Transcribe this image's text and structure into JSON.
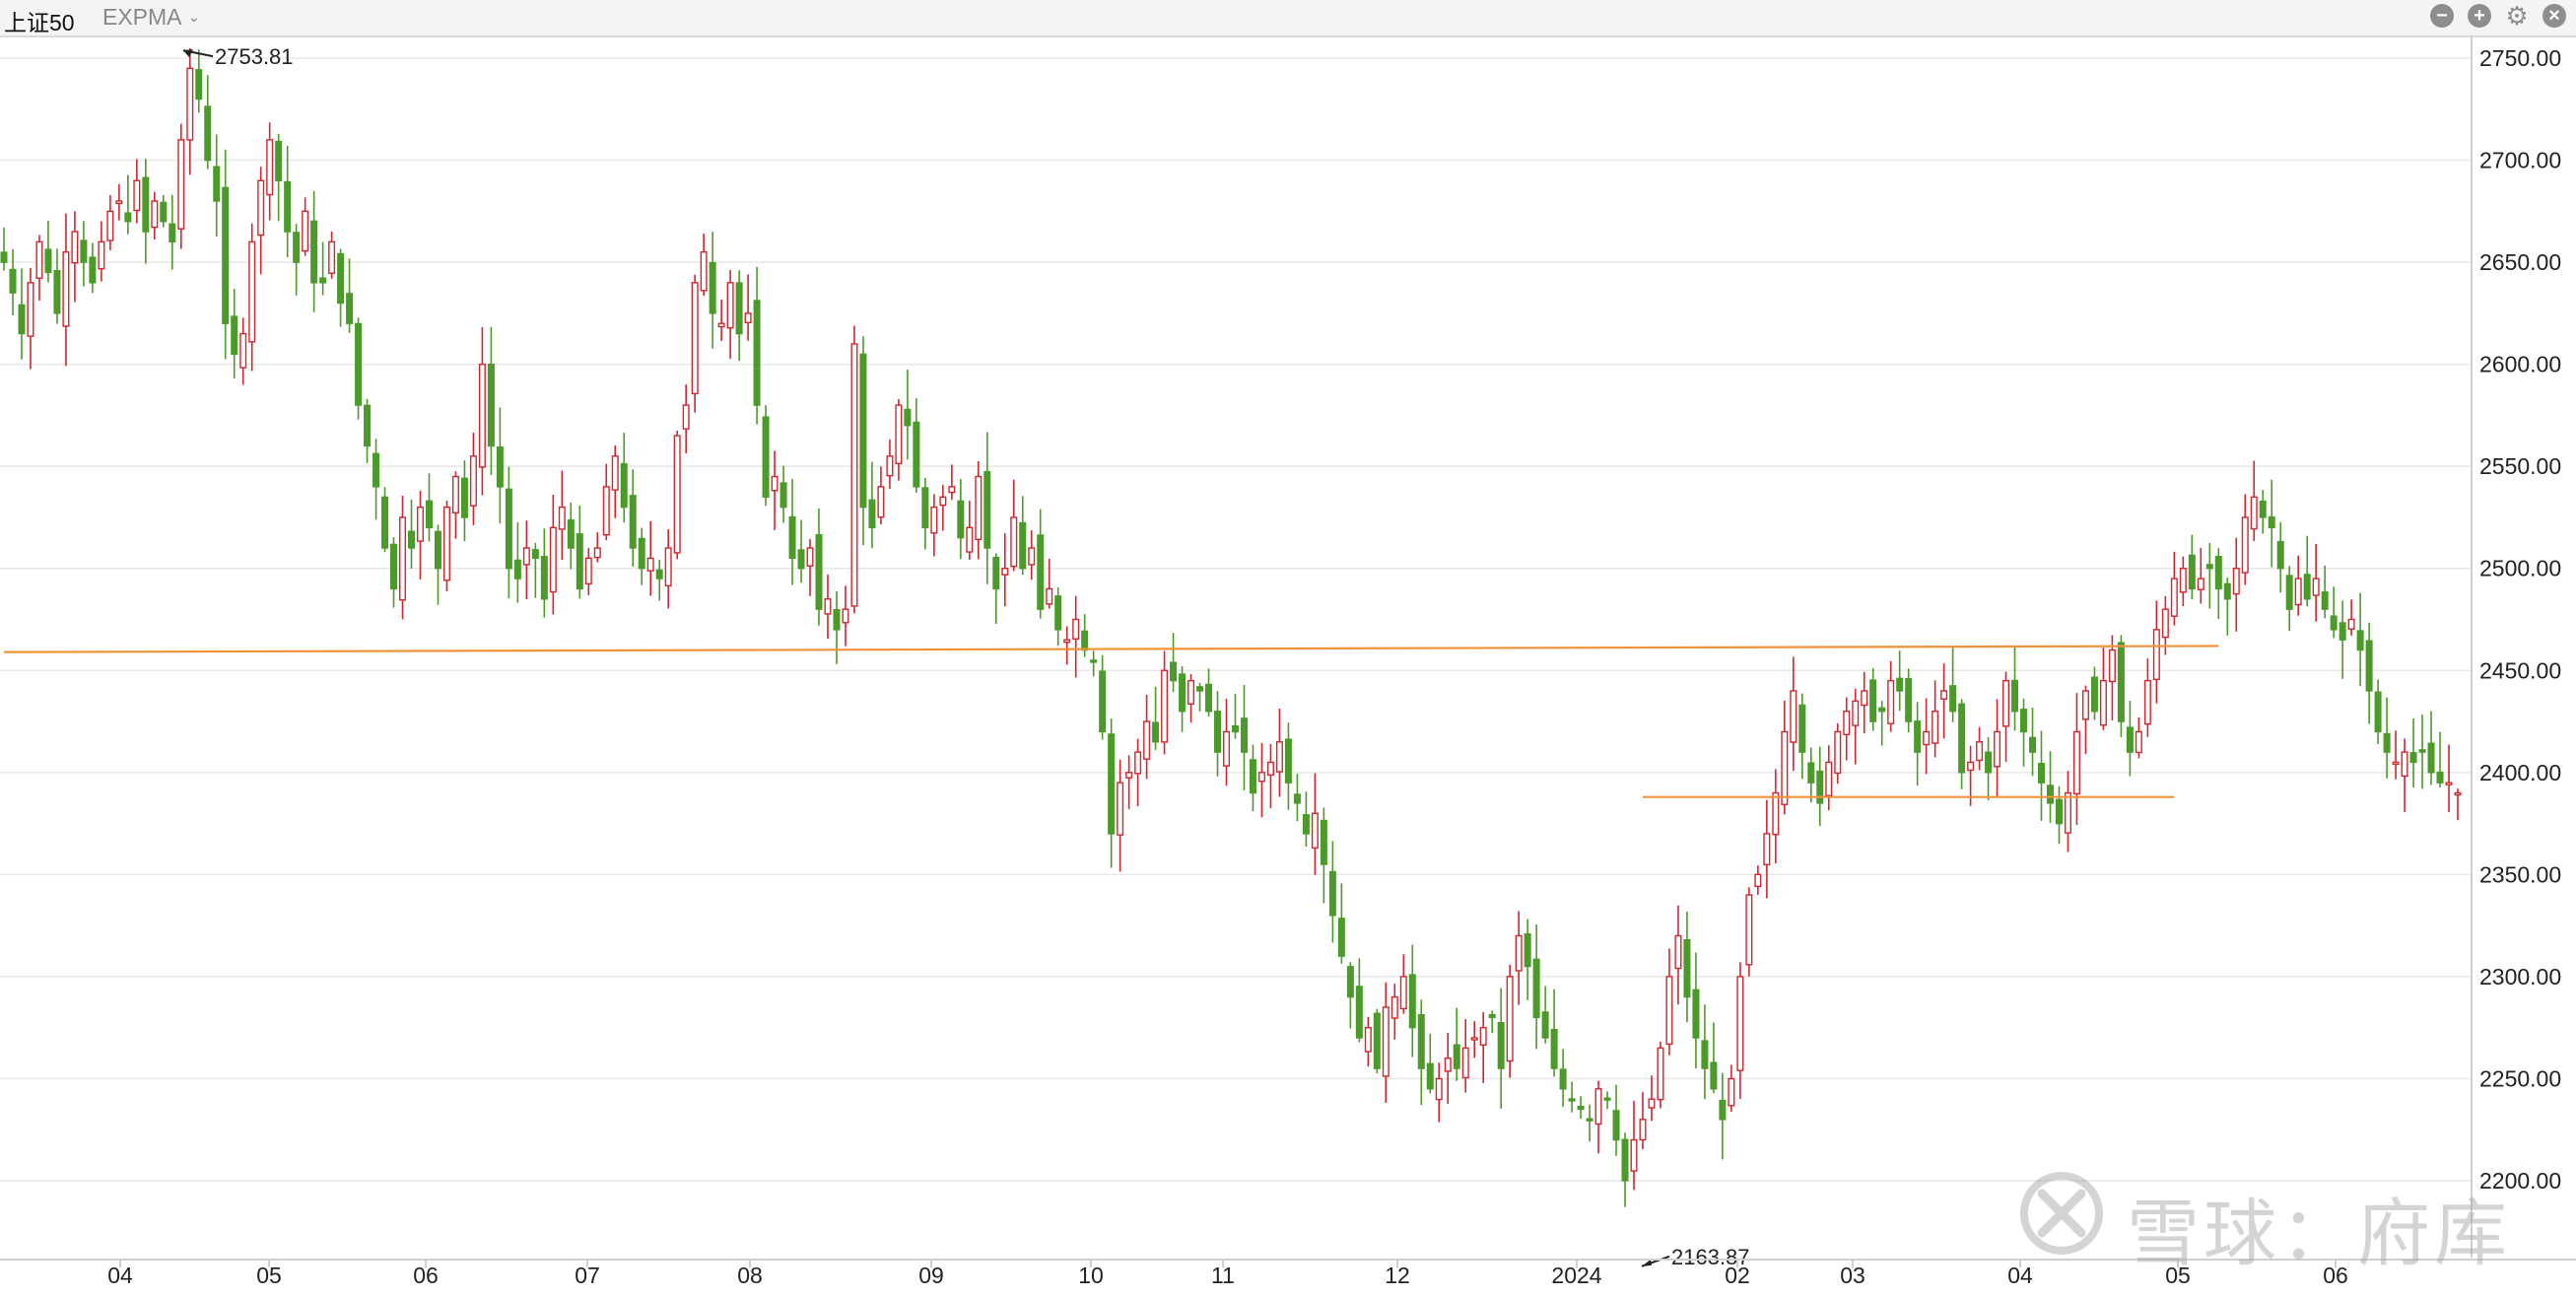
{
  "toolbar": {
    "title": "上证50",
    "indicator": "EXPMA",
    "buttons": [
      "minus-icon",
      "plus-icon",
      "gear-icon",
      "close-icon"
    ]
  },
  "watermark": {
    "text": "雪球：府库"
  },
  "colors": {
    "up": "#d0262f",
    "down": "#4b9a2a",
    "line": "#f0923a",
    "grid": "#e8e8e8"
  },
  "chart_data": {
    "type": "candlestick",
    "title": "",
    "ylim": [
      2160,
      2765
    ],
    "y_ticks": [
      "2750.00",
      "2700.00",
      "2650.00",
      "2600.00",
      "2550.00",
      "2500.00",
      "2450.00",
      "2400.00",
      "2350.00",
      "2300.00",
      "2250.00",
      "2200.00"
    ],
    "x_labels": [
      "04",
      "05",
      "06",
      "07",
      "08",
      "09",
      "10",
      "11",
      "12",
      "2024",
      "02",
      "03",
      "04",
      "05",
      "06"
    ],
    "annotations": [
      {
        "text": "2753.81",
        "value": 2753.81,
        "type": "high"
      },
      {
        "text": "2163.87",
        "value": 2163.87,
        "type": "low"
      }
    ],
    "horizontal_lines": [
      {
        "from_index": 0,
        "to_index": 250,
        "y_start": 2459,
        "y_end": 2462
      },
      {
        "from_index": 185,
        "to_index": 245,
        "y_start": 2388,
        "y_end": 2388
      }
    ],
    "series_close": [
      2650,
      2635,
      2615,
      2640,
      2660,
      2645,
      2625,
      2655,
      2665,
      2650,
      2640,
      2660,
      2675,
      2680,
      2670,
      2690,
      2665,
      2680,
      2670,
      2660,
      2710,
      2745,
      2730,
      2700,
      2680,
      2620,
      2605,
      2615,
      2660,
      2690,
      2710,
      2690,
      2665,
      2650,
      2675,
      2640,
      2640,
      2660,
      2630,
      2620,
      2580,
      2560,
      2540,
      2510,
      2490,
      2525,
      2510,
      2530,
      2520,
      2500,
      2530,
      2545,
      2525,
      2555,
      2600,
      2560,
      2540,
      2500,
      2495,
      2510,
      2505,
      2485,
      2520,
      2530,
      2510,
      2490,
      2505,
      2510,
      2540,
      2555,
      2530,
      2510,
      2500,
      2505,
      2495,
      2510,
      2565,
      2580,
      2640,
      2655,
      2625,
      2620,
      2640,
      2615,
      2625,
      2580,
      2535,
      2545,
      2530,
      2505,
      2500,
      2510,
      2480,
      2485,
      2470,
      2480,
      2610,
      2530,
      2520,
      2540,
      2555,
      2580,
      2570,
      2540,
      2520,
      2530,
      2535,
      2540,
      2515,
      2520,
      2545,
      2510,
      2490,
      2500,
      2525,
      2500,
      2510,
      2480,
      2490,
      2470,
      2465,
      2475,
      2460,
      2455,
      2420,
      2370,
      2395,
      2400,
      2410,
      2425,
      2415,
      2450,
      2445,
      2430,
      2445,
      2440,
      2430,
      2410,
      2420,
      2420,
      2410,
      2390,
      2400,
      2405,
      2415,
      2395,
      2385,
      2370,
      2380,
      2355,
      2330,
      2310,
      2290,
      2270,
      2275,
      2255,
      2285,
      2290,
      2300,
      2275,
      2255,
      2245,
      2250,
      2260,
      2255,
      2265,
      2270,
      2275,
      2280,
      2255,
      2300,
      2320,
      2305,
      2280,
      2270,
      2255,
      2245,
      2240,
      2235,
      2230,
      2245,
      2240,
      2220,
      2200,
      2220,
      2230,
      2240,
      2265,
      2300,
      2320,
      2290,
      2270,
      2255,
      2245,
      2230,
      2250,
      2300,
      2340,
      2350,
      2370,
      2390,
      2420,
      2440,
      2410,
      2395,
      2385,
      2405,
      2420,
      2430,
      2435,
      2440,
      2425,
      2430,
      2445,
      2440,
      2425,
      2410,
      2420,
      2430,
      2440,
      2430,
      2400,
      2405,
      2415,
      2400,
      2420,
      2445,
      2430,
      2420,
      2410,
      2395,
      2385,
      2375,
      2390,
      2420,
      2440,
      2430,
      2445,
      2460,
      2425,
      2410,
      2420,
      2445,
      2470,
      2480,
      2495,
      2500,
      2490,
      2495,
      2500,
      2490,
      2485,
      2500,
      2525,
      2535,
      2525,
      2520,
      2500,
      2480,
      2495,
      2485,
      2495,
      2480,
      2470,
      2465,
      2475,
      2460,
      2440,
      2420,
      2410,
      2405,
      2410,
      2405,
      2410,
      2400,
      2395,
      2395,
      2390
    ]
  }
}
